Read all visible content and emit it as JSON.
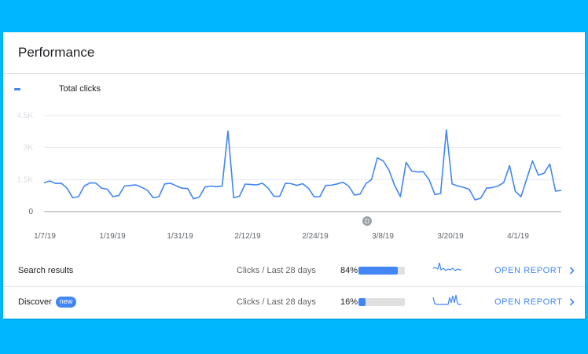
{
  "card": {
    "title": "Performance",
    "legend_label": "Total clicks",
    "annotation_badge": "D"
  },
  "chart_data": {
    "type": "line",
    "ylabel_ticks": [
      "0",
      "1.5K",
      "3K",
      "4.5K"
    ],
    "ylim": [
      0,
      4500
    ],
    "x_tick_labels": [
      "1/7/19",
      "1/19/19",
      "1/31/19",
      "2/12/19",
      "2/24/19",
      "3/8/19",
      "3/20/19",
      "4/1/19"
    ],
    "series": [
      {
        "color": "#4285f4",
        "values": [
          1350,
          1440,
          1320,
          1330,
          1100,
          650,
          700,
          1200,
          1350,
          1340,
          1100,
          1050,
          700,
          750,
          1200,
          1230,
          1250,
          1140,
          1000,
          650,
          700,
          1300,
          1330,
          1210,
          1100,
          1080,
          600,
          680,
          1150,
          1200,
          1170,
          1200,
          3780,
          650,
          720,
          1290,
          1270,
          1250,
          1330,
          1100,
          720,
          720,
          1330,
          1310,
          1230,
          1310,
          1100,
          700,
          700,
          1230,
          1240,
          1300,
          1380,
          1200,
          780,
          820,
          1310,
          1510,
          2520,
          2380,
          1960,
          1230,
          700,
          2310,
          1900,
          1860,
          1870,
          1500,
          800,
          850,
          3840,
          1300,
          1200,
          1140,
          1040,
          550,
          630,
          1100,
          1130,
          1200,
          1370,
          2160,
          950,
          700,
          1540,
          2380,
          1710,
          1800,
          2230,
          960,
          1000
        ]
      }
    ]
  },
  "rows": [
    {
      "name": "Search results",
      "badge": "",
      "metric": "Clicks / Last 28 days",
      "percent_text": "84%",
      "percent": 84,
      "action": "OPEN REPORT"
    },
    {
      "name": "Discover",
      "badge": "new",
      "metric": "Clicks / Last 28 days",
      "percent_text": "16%",
      "percent": 16,
      "action": "OPEN REPORT"
    }
  ],
  "colors": {
    "accent": "#4285f4",
    "background": "#00b7ff",
    "gridline": "#e8eaed",
    "track": "#e0e0e0"
  },
  "icons": {
    "chevron": "chevron-right-icon"
  }
}
